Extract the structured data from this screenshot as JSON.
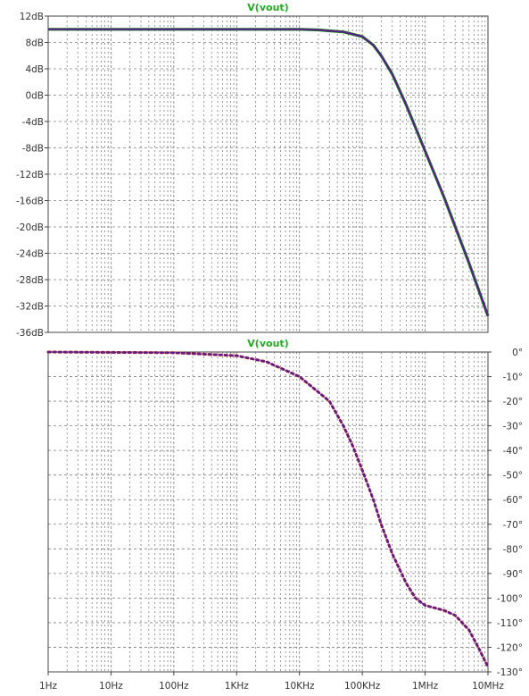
{
  "chart_data": [
    {
      "type": "line",
      "title": "V(vout)",
      "xlabel": "",
      "ylabel": "",
      "x_scale": "log",
      "xlim": [
        "1Hz",
        "10MHz"
      ],
      "x_tick_labels": [
        "1Hz",
        "10Hz",
        "100Hz",
        "1KHz",
        "10KHz",
        "100KHz",
        "1MHz",
        "10MHz"
      ],
      "ylim": [
        -36,
        12
      ],
      "y_unit": "dB",
      "y_tick_labels": [
        "12dB",
        "8dB",
        "4dB",
        "0dB",
        "-4dB",
        "-8dB",
        "-12dB",
        "-16dB",
        "-20dB",
        "-24dB",
        "-28dB",
        "-32dB",
        "-36dB"
      ],
      "y_ticks": [
        12,
        8,
        4,
        0,
        -4,
        -8,
        -12,
        -16,
        -20,
        -24,
        -28,
        -32,
        -36
      ],
      "grid": true,
      "series": [
        {
          "line_style": "solid",
          "x": [
            1,
            1000,
            10000,
            20000,
            50000,
            100000,
            150000,
            200000,
            300000,
            500000,
            1000000,
            2000000,
            5000000,
            10000000
          ],
          "y": [
            10,
            10,
            10,
            9.9,
            9.6,
            8.9,
            7.6,
            6.0,
            3.2,
            -1.5,
            -8.5,
            -15.5,
            -25.5,
            -33.5
          ]
        }
      ],
      "colors": {
        "trace": "#5b1e8c",
        "trace_shadow": "#0a8a0a",
        "title": "#22aa22",
        "grid": "#808080"
      }
    },
    {
      "type": "line",
      "title": "V(vout)",
      "xlabel": "",
      "ylabel": "",
      "x_scale": "log",
      "xlim": [
        "1Hz",
        "10MHz"
      ],
      "ylim": [
        -130,
        0
      ],
      "y_unit": "°",
      "y_tick_labels": [
        "0°",
        "-10°",
        "-20°",
        "-30°",
        "-40°",
        "-50°",
        "-60°",
        "-70°",
        "-80°",
        "-90°",
        "-100°",
        "-110°",
        "-120°",
        "-130°"
      ],
      "y_ticks": [
        0,
        -10,
        -20,
        -30,
        -40,
        -50,
        -60,
        -70,
        -80,
        -90,
        -100,
        -110,
        -120,
        -130
      ],
      "grid": true,
      "series": [
        {
          "line_style": "dotted",
          "x": [
            1,
            100,
            1000,
            3000,
            10000,
            30000,
            50000,
            70000,
            100000,
            150000,
            200000,
            300000,
            500000,
            700000,
            1000000,
            2000000,
            3000000,
            5000000,
            7000000,
            10000000
          ],
          "y": [
            0,
            -0.3,
            -1.5,
            -4,
            -10,
            -20,
            -30,
            -38,
            -48,
            -60,
            -70,
            -82,
            -94,
            -100,
            -103,
            -105,
            -107,
            -113,
            -120,
            -128
          ]
        }
      ],
      "colors": {
        "trace": "#5b1e8c",
        "trace_shadow": "#cc1a1a",
        "title": "#22aa22",
        "grid": "#808080"
      }
    }
  ]
}
